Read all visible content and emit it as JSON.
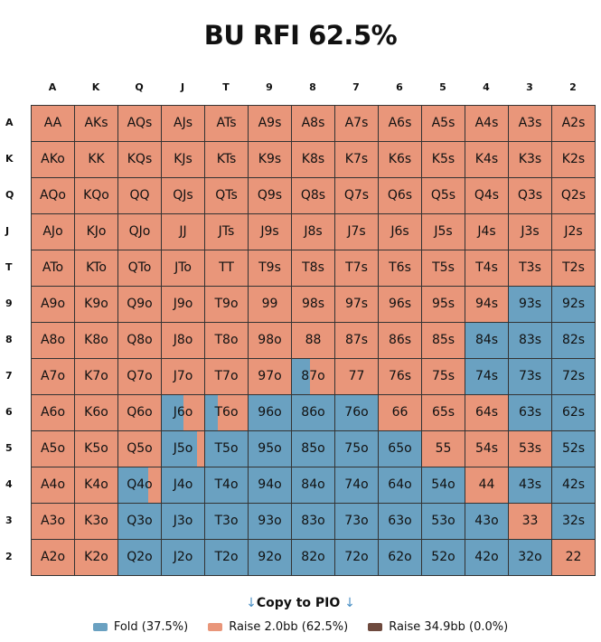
{
  "chart_data": {
    "type": "heatmap",
    "title": "BU RFI 62.5%",
    "ranks": [
      "A",
      "K",
      "Q",
      "J",
      "T",
      "9",
      "8",
      "7",
      "6",
      "5",
      "4",
      "3",
      "2"
    ],
    "colors": {
      "fold": "#6aa1c1",
      "raise": "#e9967a",
      "raise_large": "#6e4a3e"
    },
    "legend": [
      {
        "label": "Fold (37.5%)",
        "color": "#6aa1c1"
      },
      {
        "label": "Raise 2.0bb (62.5%)",
        "color": "#e9967a"
      },
      {
        "label": "Raise 34.9bb (0.0%)",
        "color": "#6e4a3e"
      }
    ],
    "hands": [
      [
        "AA",
        "AKs",
        "AQs",
        "AJs",
        "ATs",
        "A9s",
        "A8s",
        "A7s",
        "A6s",
        "A5s",
        "A4s",
        "A3s",
        "A2s"
      ],
      [
        "AKo",
        "KK",
        "KQs",
        "KJs",
        "KTs",
        "K9s",
        "K8s",
        "K7s",
        "K6s",
        "K5s",
        "K4s",
        "K3s",
        "K2s"
      ],
      [
        "AQo",
        "KQo",
        "QQ",
        "QJs",
        "QTs",
        "Q9s",
        "Q8s",
        "Q7s",
        "Q6s",
        "Q5s",
        "Q4s",
        "Q3s",
        "Q2s"
      ],
      [
        "AJo",
        "KJo",
        "QJo",
        "JJ",
        "JTs",
        "J9s",
        "J8s",
        "J7s",
        "J6s",
        "J5s",
        "J4s",
        "J3s",
        "J2s"
      ],
      [
        "ATo",
        "KTo",
        "QTo",
        "JTo",
        "TT",
        "T9s",
        "T8s",
        "T7s",
        "T6s",
        "T5s",
        "T4s",
        "T3s",
        "T2s"
      ],
      [
        "A9o",
        "K9o",
        "Q9o",
        "J9o",
        "T9o",
        "99",
        "98s",
        "97s",
        "96s",
        "95s",
        "94s",
        "93s",
        "92s"
      ],
      [
        "A8o",
        "K8o",
        "Q8o",
        "J8o",
        "T8o",
        "98o",
        "88",
        "87s",
        "86s",
        "85s",
        "84s",
        "83s",
        "82s"
      ],
      [
        "A7o",
        "K7o",
        "Q7o",
        "J7o",
        "T7o",
        "97o",
        "87o",
        "77",
        "76s",
        "75s",
        "74s",
        "73s",
        "72s"
      ],
      [
        "A6o",
        "K6o",
        "Q6o",
        "J6o",
        "T6o",
        "96o",
        "86o",
        "76o",
        "66",
        "65s",
        "64s",
        "63s",
        "62s"
      ],
      [
        "A5o",
        "K5o",
        "Q5o",
        "J5o",
        "T5o",
        "95o",
        "85o",
        "75o",
        "65o",
        "55",
        "54s",
        "53s",
        "52s"
      ],
      [
        "A4o",
        "K4o",
        "Q4o",
        "J4o",
        "T4o",
        "94o",
        "84o",
        "74o",
        "64o",
        "54o",
        "44",
        "43s",
        "42s"
      ],
      [
        "A3o",
        "K3o",
        "Q3o",
        "J3o",
        "T3o",
        "93o",
        "83o",
        "73o",
        "63o",
        "53o",
        "43o",
        "33",
        "32s"
      ],
      [
        "A2o",
        "K2o",
        "Q2o",
        "J2o",
        "T2o",
        "92o",
        "82o",
        "72o",
        "62o",
        "52o",
        "42o",
        "32o",
        "22"
      ]
    ],
    "fold_freq": [
      [
        0,
        0,
        0,
        0,
        0,
        0,
        0,
        0,
        0,
        0,
        0,
        0,
        0
      ],
      [
        0,
        0,
        0,
        0,
        0,
        0,
        0,
        0,
        0,
        0,
        0,
        0,
        0
      ],
      [
        0,
        0,
        0,
        0,
        0,
        0,
        0,
        0,
        0,
        0,
        0,
        0,
        0
      ],
      [
        0,
        0,
        0,
        0,
        0,
        0,
        0,
        0,
        0,
        0,
        0,
        0,
        0
      ],
      [
        0,
        0,
        0,
        0,
        0,
        0,
        0,
        0,
        0,
        0,
        0,
        0,
        0
      ],
      [
        0,
        0,
        0,
        0,
        0,
        0,
        0,
        0,
        0,
        0,
        0,
        1,
        1
      ],
      [
        0,
        0,
        0,
        0,
        0,
        0,
        0,
        0,
        0,
        0,
        1,
        1,
        1
      ],
      [
        0,
        0,
        0,
        0,
        0,
        0,
        0.42,
        0,
        0,
        0,
        1,
        1,
        1
      ],
      [
        0,
        0,
        0,
        0.5,
        0.3,
        1,
        1,
        1,
        0,
        0,
        0,
        1,
        1
      ],
      [
        0,
        0,
        0,
        0.83,
        1,
        1,
        1,
        1,
        1,
        0,
        0,
        0,
        1
      ],
      [
        0,
        0,
        0.7,
        1,
        1,
        1,
        1,
        1,
        1,
        1,
        0,
        1,
        1
      ],
      [
        0,
        0,
        1,
        1,
        1,
        1,
        1,
        1,
        1,
        1,
        1,
        0,
        1
      ],
      [
        0,
        0,
        1,
        1,
        1,
        1,
        1,
        1,
        1,
        1,
        1,
        1,
        0
      ]
    ]
  },
  "copy": {
    "arrow": "↓",
    "label": "Copy to PIO"
  }
}
